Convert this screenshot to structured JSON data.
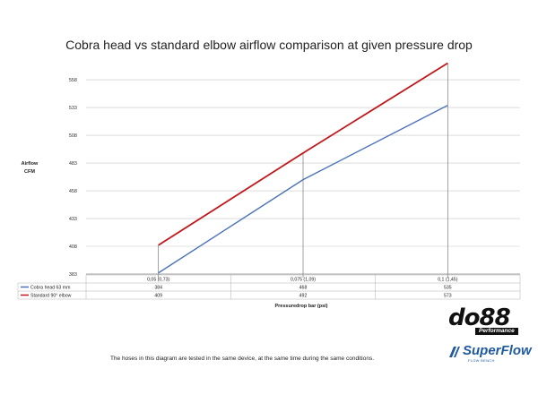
{
  "chart_data": {
    "type": "line",
    "title": "Cobra head vs standard elbow airflow comparison at given pressure drop",
    "xlabel": "Pressuredrop bar (psi)",
    "ylabel": [
      "Airflow",
      "CFM"
    ],
    "categories": [
      "0,05 (0,73)",
      "0,075 (1,09)",
      "0,1 (1,45)"
    ],
    "yticks": [
      "383",
      "408",
      "433",
      "458",
      "483",
      "508",
      "533",
      "558"
    ],
    "ylim": [
      383,
      575
    ],
    "grid": "horizontal",
    "legend": "table below x-axis",
    "series": [
      {
        "name": "Cobra head 63 mm",
        "values": [
          384,
          468,
          535
        ],
        "labels": [
          "384",
          "468",
          "535"
        ],
        "color": "#4a73b8"
      },
      {
        "name": "Standard 90° elbow",
        "values": [
          409,
          492,
          573
        ],
        "labels": [
          "409",
          "492",
          "573"
        ],
        "color": "#c0171b"
      }
    ]
  },
  "footer": {
    "note": "The hoses in this diagram are tested in the same device, at the same time during the same conditions."
  },
  "logos": {
    "do88": {
      "main": "do88",
      "sub": "Performance"
    },
    "superflow": {
      "main": "SuperFlow",
      "sub": "FLOW BENCH"
    }
  }
}
